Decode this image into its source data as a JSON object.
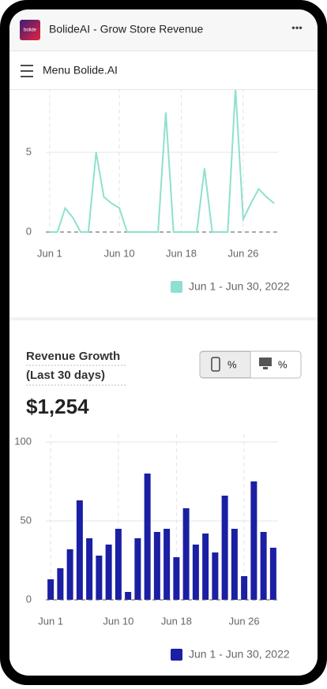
{
  "header": {
    "logo": "bolide",
    "title": "BolideAI - Grow Store Revenue",
    "more": "•••"
  },
  "menu": {
    "label": "Menu Bolide.AI"
  },
  "card": {
    "title": "Revenue Growth",
    "subtitle": "(Last 30 days)",
    "total": "$1,254",
    "toggles": [
      "%",
      "%"
    ]
  },
  "chart_data": [
    {
      "type": "line",
      "categories": [
        "Jun 1",
        null,
        null,
        null,
        null,
        null,
        null,
        null,
        null,
        "Jun 10",
        null,
        null,
        null,
        null,
        null,
        null,
        null,
        "Jun 18",
        null,
        null,
        null,
        null,
        null,
        null,
        null,
        "Jun 26",
        null,
        null,
        null,
        null
      ],
      "series": [
        {
          "name": "Jun 1 - Jun 30, 2022",
          "color": "#8ee0cf",
          "values": [
            0,
            0,
            1.5,
            0.9,
            0,
            0,
            5,
            2.2,
            1.8,
            1.5,
            0,
            0,
            0,
            0,
            0,
            7.5,
            0,
            0,
            0,
            0,
            4,
            0,
            0,
            0,
            9,
            0.8,
            1.8,
            2.7,
            2.2,
            1.8
          ]
        }
      ],
      "ylim": [
        0,
        9
      ],
      "yticks": [
        0,
        5
      ],
      "grid": true
    },
    {
      "type": "bar",
      "categories": [
        "Jun 1",
        null,
        null,
        null,
        null,
        null,
        null,
        "Jun 10",
        null,
        null,
        null,
        null,
        null,
        "Jun 18",
        null,
        null,
        null,
        null,
        null,
        null,
        "Jun 26",
        null,
        null,
        null
      ],
      "series": [
        {
          "name": "Jun 1 - Jun 30, 2022",
          "color": "#1a1fa3",
          "values": [
            13,
            20,
            32,
            63,
            39,
            28,
            35,
            45,
            5,
            39,
            80,
            43,
            45,
            27,
            58,
            35,
            42,
            30,
            66,
            45,
            15,
            75,
            43,
            33
          ]
        }
      ],
      "ylim": [
        0,
        100
      ],
      "yticks": [
        0,
        50,
        100
      ],
      "grid": true
    }
  ]
}
